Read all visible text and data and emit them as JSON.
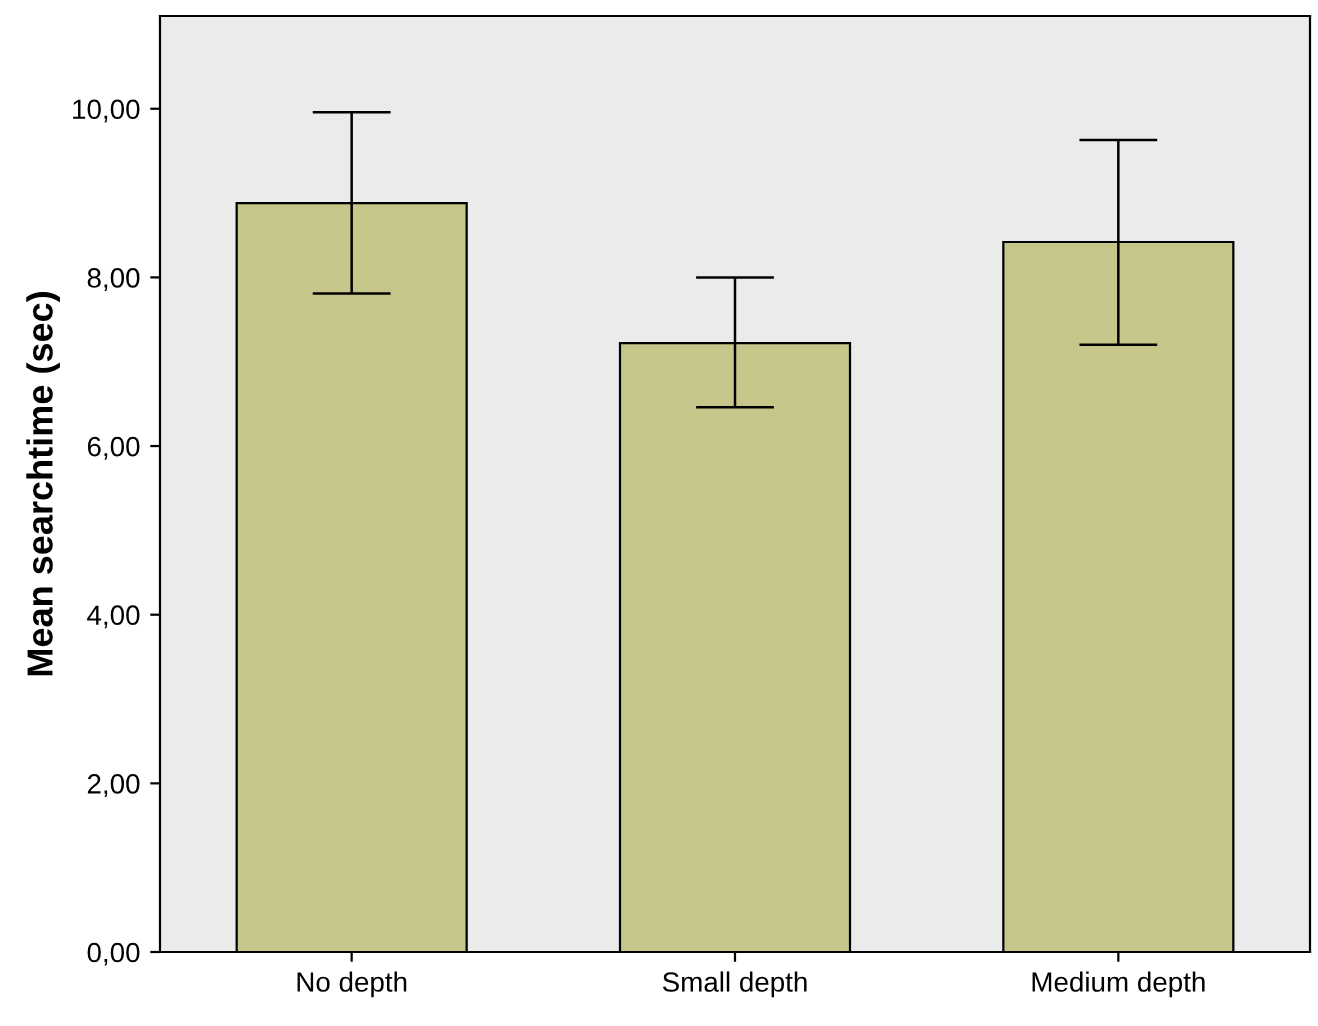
{
  "chart_data": {
    "type": "bar",
    "ylabel": "Mean searchtime (sec)",
    "categories": [
      "No depth",
      "Small depth",
      "Medium depth"
    ],
    "values": [
      8.88,
      7.22,
      8.42
    ],
    "errors": [
      [
        7.81,
        9.96
      ],
      [
        6.46,
        8.0
      ],
      [
        7.2,
        9.63
      ]
    ],
    "color": "#c6c68a",
    "ylim": [
      0,
      11.1
    ],
    "yticks": [
      {
        "value": 0,
        "label": "0,00"
      },
      {
        "value": 2,
        "label": "2,00"
      },
      {
        "value": 4,
        "label": "4,00"
      },
      {
        "value": 6,
        "label": "6,00"
      },
      {
        "value": 8,
        "label": "8,00"
      },
      {
        "value": 10,
        "label": "10,00"
      }
    ],
    "grid": false
  }
}
